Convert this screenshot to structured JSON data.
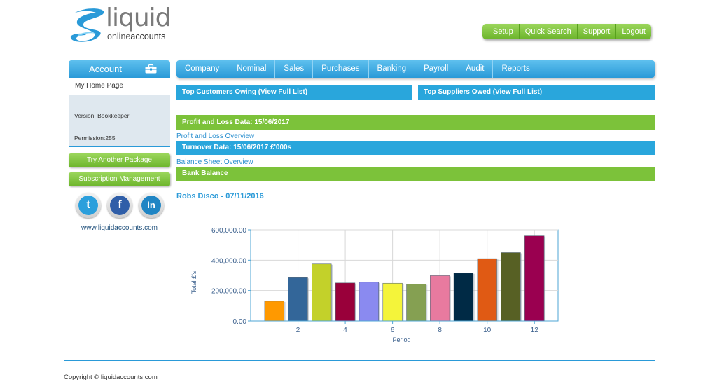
{
  "brand": {
    "name": "liquid",
    "sub_online": "online",
    "sub_accounts": "accounts"
  },
  "top_links": [
    "Setup",
    "Quick Search",
    "Support",
    "Logout"
  ],
  "sidebar": {
    "heading": "Account",
    "home_link": "My Home Page",
    "version": "Version: Bookkeeper",
    "permission": "Permission:255",
    "try_package": "Try Another Package",
    "subscription": "Subscription Management",
    "social": [
      "twitter",
      "facebook",
      "linkedin"
    ],
    "social_glyphs": [
      "t",
      "f",
      "in"
    ],
    "site_url": "www.liquidaccounts.com"
  },
  "main_nav": [
    "Company",
    "Nominal",
    "Sales",
    "Purchases",
    "Banking",
    "Payroll",
    "Audit",
    "Reports"
  ],
  "panels": {
    "top_customers": "Top Customers Owing (View Full List)",
    "top_suppliers": "Top Suppliers Owed (View Full List)",
    "pl_data": "Profit and Loss Data:  15/06/2017",
    "pl_overview": "Profit and Loss Overview",
    "turnover": "Turnover Data: 15/06/2017 £'000s",
    "bs_overview": "Balance Sheet Overview",
    "bank_balance": "Bank Balance"
  },
  "company": {
    "name": "Robs Disco",
    "separator": " - ",
    "date": "07/11/2016"
  },
  "colors": {
    "blue": "#29a6dc",
    "green": "#7cc23a"
  },
  "chart_data": {
    "type": "bar",
    "xlabel": "Period",
    "ylabel": "Total £'s",
    "ylim": [
      0,
      600000
    ],
    "y_ticks": [
      "0.00",
      "200,000.00",
      "400,000.00",
      "600,000.00"
    ],
    "x_ticks": [
      "2",
      "4",
      "6",
      "8",
      "10",
      "12"
    ],
    "categories": [
      1,
      2,
      3,
      4,
      5,
      6,
      7,
      8,
      9,
      10,
      11,
      12
    ],
    "values": [
      130000,
      285000,
      375000,
      250000,
      255000,
      248000,
      242000,
      298000,
      315000,
      410000,
      450000,
      560000
    ],
    "colors": [
      "#ff9900",
      "#336699",
      "#c3d12a",
      "#99003a",
      "#8a8af0",
      "#f4f43a",
      "#85a052",
      "#e87a9f",
      "#002a45",
      "#e05a14",
      "#576024",
      "#9a0050"
    ],
    "grid": true
  },
  "footer": {
    "copyright": "Copyright © liquidaccounts.com"
  }
}
